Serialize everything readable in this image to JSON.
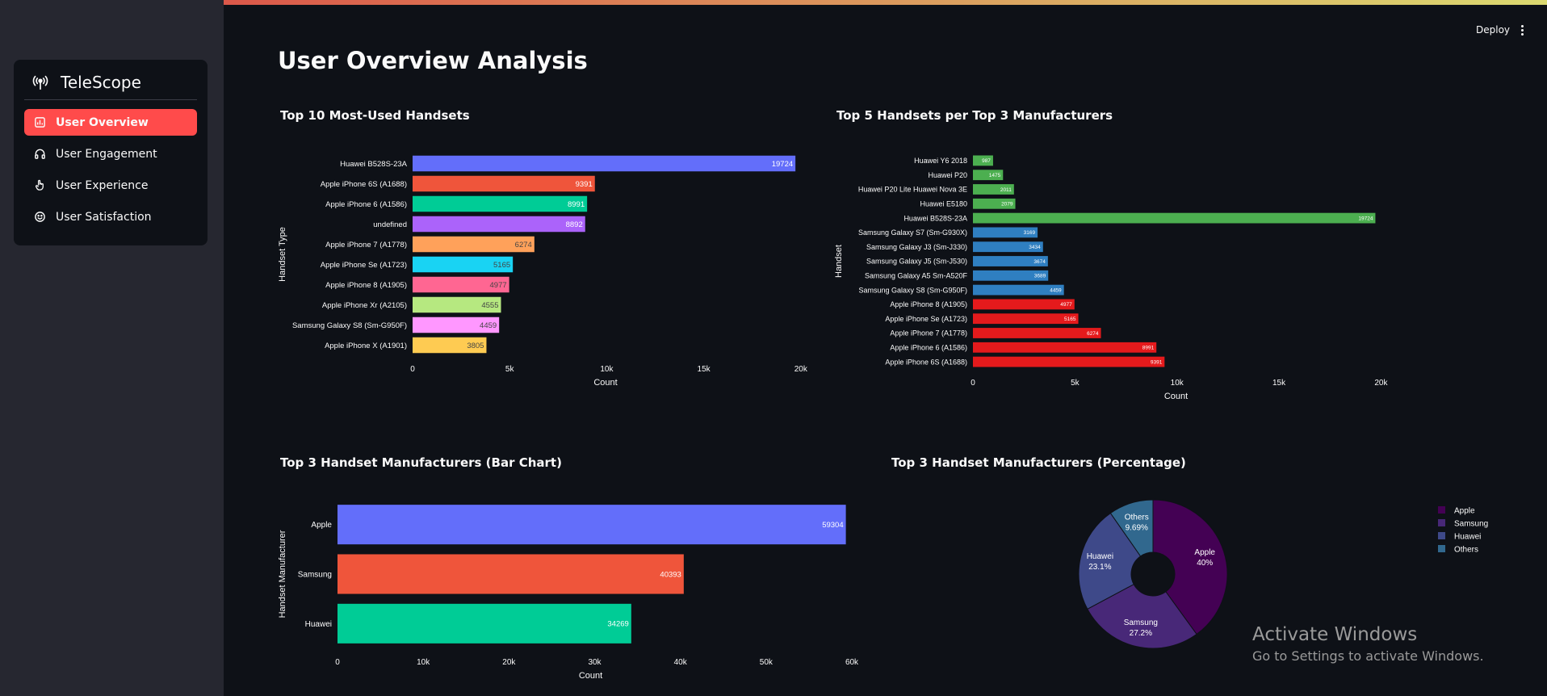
{
  "app": {
    "brand": "TeleScope",
    "deploy_label": "Deploy"
  },
  "sidebar": {
    "items": [
      {
        "label": "User Overview",
        "active": true,
        "icon": "chart-icon"
      },
      {
        "label": "User Engagement",
        "active": false,
        "icon": "headphones-icon"
      },
      {
        "label": "User Experience",
        "active": false,
        "icon": "pointer-hand-icon"
      },
      {
        "label": "User Satisfaction",
        "active": false,
        "icon": "smile-icon"
      }
    ]
  },
  "page": {
    "title": "User Overview Analysis"
  },
  "chart_data": [
    {
      "type": "bar",
      "orientation": "horizontal",
      "title": "Top 10 Most-Used Handsets",
      "xlabel": "Count",
      "ylabel": "Handset Type",
      "categories": [
        "Huawei B528S-23A",
        "Apple iPhone 6S (A1688)",
        "Apple iPhone 6 (A1586)",
        "undefined",
        "Apple iPhone 7 (A1778)",
        "Apple iPhone Se (A1723)",
        "Apple iPhone 8 (A1905)",
        "Apple iPhone Xr (A2105)",
        "Samsung Galaxy S8 (Sm-G950F)",
        "Apple iPhone X (A1901)"
      ],
      "values": [
        19724,
        9391,
        8991,
        8892,
        6274,
        5165,
        4977,
        4555,
        4459,
        3805
      ],
      "colors": [
        "#636efa",
        "#ef553b",
        "#00cc96",
        "#ab63fa",
        "#ffa15a",
        "#19d3f3",
        "#ff6692",
        "#b6e880",
        "#ff97ff",
        "#fecb52"
      ],
      "xlim": [
        0,
        20300
      ],
      "xticks": [
        {
          "v": 0,
          "label": "0"
        },
        {
          "v": 5000,
          "label": "5k"
        },
        {
          "v": 10000,
          "label": "10k"
        },
        {
          "v": 15000,
          "label": "15k"
        },
        {
          "v": 20000,
          "label": "20k"
        }
      ]
    },
    {
      "type": "bar",
      "orientation": "horizontal",
      "title": "Top 5 Handsets per Top 3 Manufacturers",
      "xlabel": "Count",
      "ylabel": "Handset",
      "categories": [
        "Huawei Y6 2018",
        "Huawei P20",
        "Huawei P20 Lite Huawei Nova 3E",
        "Huawei E5180",
        "Huawei B528S-23A",
        "Samsung Galaxy S7 (Sm-G930X)",
        "Samsung Galaxy J3 (Sm-J330)",
        "Samsung Galaxy J5 (Sm-J530)",
        "Samsung Galaxy A5 Sm-A520F",
        "Samsung Galaxy S8 (Sm-G950F)",
        "Apple iPhone 8 (A1905)",
        "Apple iPhone Se (A1723)",
        "Apple iPhone 7 (A1778)",
        "Apple iPhone 6 (A1586)",
        "Apple iPhone 6S (A1688)"
      ],
      "values": [
        987,
        1475,
        2011,
        2079,
        19724,
        3169,
        3434,
        3674,
        3689,
        4459,
        4977,
        5165,
        6274,
        8991,
        9391
      ],
      "colors": [
        "#4caf50",
        "#4caf50",
        "#4caf50",
        "#4caf50",
        "#4caf50",
        "#2f7fc1",
        "#2f7fc1",
        "#2f7fc1",
        "#2f7fc1",
        "#2f7fc1",
        "#e41a1c",
        "#e41a1c",
        "#e41a1c",
        "#e41a1c",
        "#e41a1c"
      ],
      "xlim": [
        0,
        20300
      ],
      "xticks": [
        {
          "v": 0,
          "label": "0"
        },
        {
          "v": 5000,
          "label": "5k"
        },
        {
          "v": 10000,
          "label": "10k"
        },
        {
          "v": 15000,
          "label": "15k"
        },
        {
          "v": 20000,
          "label": "20k"
        }
      ]
    },
    {
      "type": "bar",
      "orientation": "horizontal",
      "title": "Top 3 Handset Manufacturers (Bar Chart)",
      "xlabel": "Count",
      "ylabel": "Handset Manufacturer",
      "categories": [
        "Apple",
        "Samsung",
        "Huawei"
      ],
      "values": [
        59304,
        40393,
        34269
      ],
      "colors": [
        "#636efa",
        "#ef553b",
        "#00cc96"
      ],
      "xlim": [
        0,
        60000
      ],
      "xticks": [
        {
          "v": 0,
          "label": "0"
        },
        {
          "v": 10000,
          "label": "10k"
        },
        {
          "v": 20000,
          "label": "20k"
        },
        {
          "v": 30000,
          "label": "30k"
        },
        {
          "v": 40000,
          "label": "40k"
        },
        {
          "v": 50000,
          "label": "50k"
        },
        {
          "v": 60000,
          "label": "60k"
        }
      ]
    },
    {
      "type": "pie",
      "hole": true,
      "title": "Top 3 Handset Manufacturers (Percentage)",
      "labels": [
        "Apple",
        "Samsung",
        "Huawei",
        "Others"
      ],
      "values": [
        40,
        27.2,
        23.1,
        9.69
      ],
      "value_labels": [
        "40%",
        "27.2%",
        "23.1%",
        "9.69%"
      ],
      "colors": [
        "#440154",
        "#482878",
        "#3e4989",
        "#31688e"
      ],
      "legend_position": "right"
    }
  ],
  "watermark": {
    "line1": "Activate Windows",
    "line2": "Go to Settings to activate Windows."
  }
}
